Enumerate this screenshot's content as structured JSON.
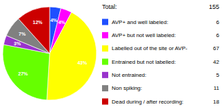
{
  "chart_data": {
    "type": "pie",
    "title": "Total:",
    "total": 155,
    "categories": [
      "AVP+ and well labeled:",
      "AVP+ but not well labeled:",
      "Labelled out of the site or AVP-",
      "Entrained but not labelled:",
      "Not entrained:",
      "Non spiking:",
      "Dead during / after recording:"
    ],
    "values": [
      6,
      6,
      67,
      42,
      5,
      11,
      18
    ],
    "colors": [
      "#1f4fff",
      "#ff00ff",
      "#ffff00",
      "#66ff00",
      "#9933cc",
      "#808080",
      "#cc0000"
    ],
    "percentages": [
      4,
      4,
      43,
      27,
      3,
      7,
      12
    ],
    "percentage_labels": [
      "4%",
      "4%",
      "43%",
      "27%",
      "3%",
      "7%",
      "12%"
    ],
    "legend": "right"
  }
}
